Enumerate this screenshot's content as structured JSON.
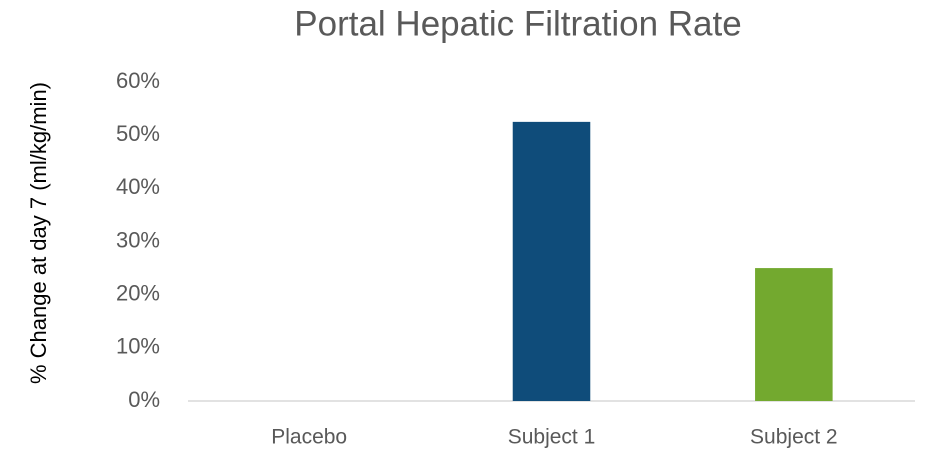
{
  "chart_data": {
    "type": "bar",
    "title": "Portal Hepatic Filtration Rate",
    "y_label": "% Change at day 7 (ml/kg/min)",
    "categories": [
      "Placebo",
      "Subject 1",
      "Subject 2"
    ],
    "values": [
      0,
      52.5,
      25
    ],
    "colors": [
      "#0f4c7a",
      "#0f4c7a",
      "#73a92f"
    ],
    "ylim": [
      0,
      60
    ],
    "yticks": [
      {
        "value": 0,
        "label": "0%"
      },
      {
        "value": 10,
        "label": "10%"
      },
      {
        "value": 20,
        "label": "20%"
      },
      {
        "value": 30,
        "label": "30%"
      },
      {
        "value": 40,
        "label": "40%"
      },
      {
        "value": 50,
        "label": "50%"
      },
      {
        "value": 60,
        "label": "60%"
      }
    ],
    "grid": false
  }
}
